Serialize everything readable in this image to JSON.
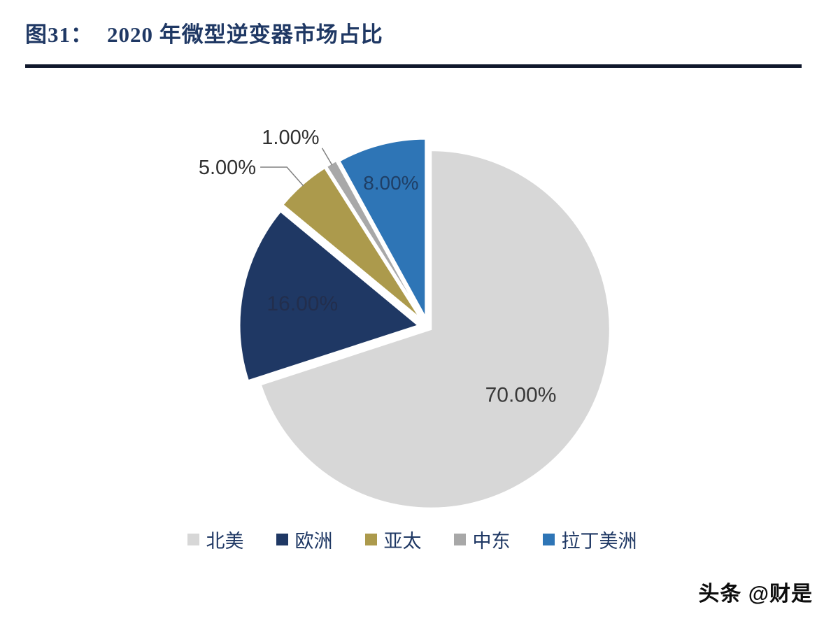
{
  "header": {
    "figure_label": "图31：",
    "title": "2020 年微型逆变器市场占比"
  },
  "watermark": {
    "text": "头条 @财是"
  },
  "style": {
    "title_color": "#1f3864",
    "divider_color": "#10182c",
    "legend_text_color": "#1f3864"
  },
  "chart_data": {
    "type": "pie",
    "title": "2020 年微型逆变器市场占比",
    "values_format": "percent",
    "legend_position": "bottom",
    "start_angle_deg": 0,
    "direction": "clockwise",
    "slices": [
      {
        "label": "北美",
        "value": 70.0,
        "display": "70.00%",
        "color": "#d7d7d7",
        "label_placement": "inside",
        "label_color": "#3a3a3a"
      },
      {
        "label": "欧洲",
        "value": 16.0,
        "display": "16.00%",
        "color": "#1f3864",
        "label_placement": "inside",
        "label_color": "#222e4d"
      },
      {
        "label": "亚太",
        "value": 5.0,
        "display": "5.00%",
        "color": "#ac9a4c",
        "label_placement": "outside",
        "label_color": "#303030"
      },
      {
        "label": "中东",
        "value": 1.0,
        "display": "1.00%",
        "color": "#a8a8a8",
        "label_placement": "outside",
        "label_color": "#303030"
      },
      {
        "label": "拉丁美洲",
        "value": 8.0,
        "display": "8.00%",
        "color": "#2e75b6",
        "label_placement": "inside",
        "label_color": "#1f3f66"
      }
    ]
  }
}
